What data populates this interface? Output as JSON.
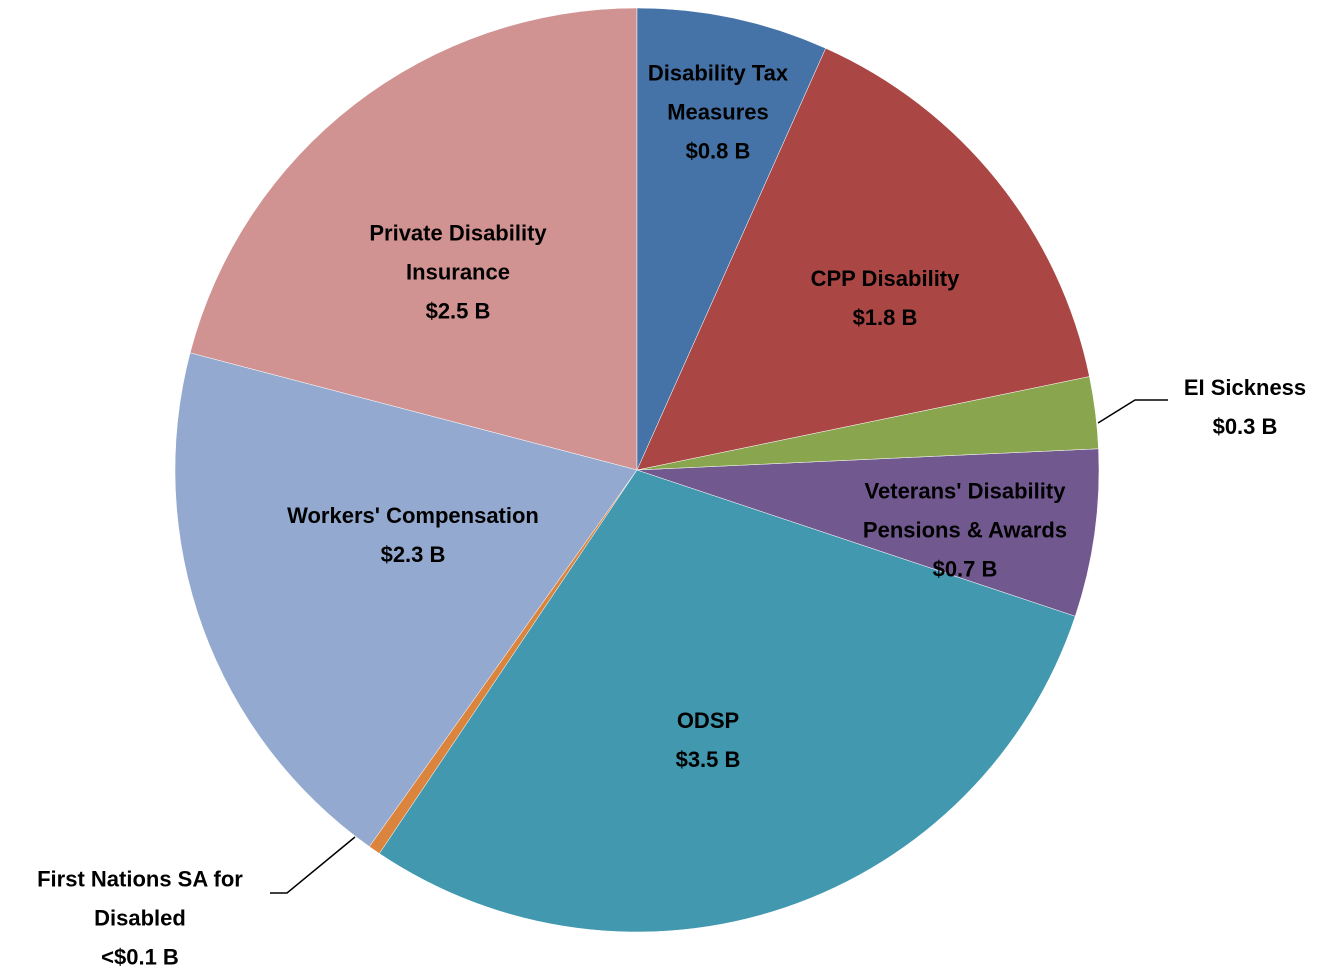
{
  "chart_data": {
    "type": "pie",
    "categories": [
      "Disability Tax Measures",
      "CPP Disability",
      "EI Sickness",
      "Veterans' Disability Pensions & Awards",
      "ODSP",
      "First Nations SA for Disabled",
      "Workers' Compensation",
      "Private Disability Insurance"
    ],
    "values": [
      0.8,
      1.8,
      0.3,
      0.7,
      3.5,
      0.05,
      2.3,
      2.5
    ],
    "value_labels": [
      "$0.8 B",
      "$1.8 B",
      "$0.3 B",
      "$0.7 B",
      "$3.5 B",
      "<$0.1 B",
      "$2.3 B",
      "$2.5 B"
    ],
    "colors": [
      "#4572a7",
      "#aa4643",
      "#89a54e",
      "#71588f",
      "#4198af",
      "#db843d",
      "#93a9cf",
      "#d19392"
    ]
  }
}
